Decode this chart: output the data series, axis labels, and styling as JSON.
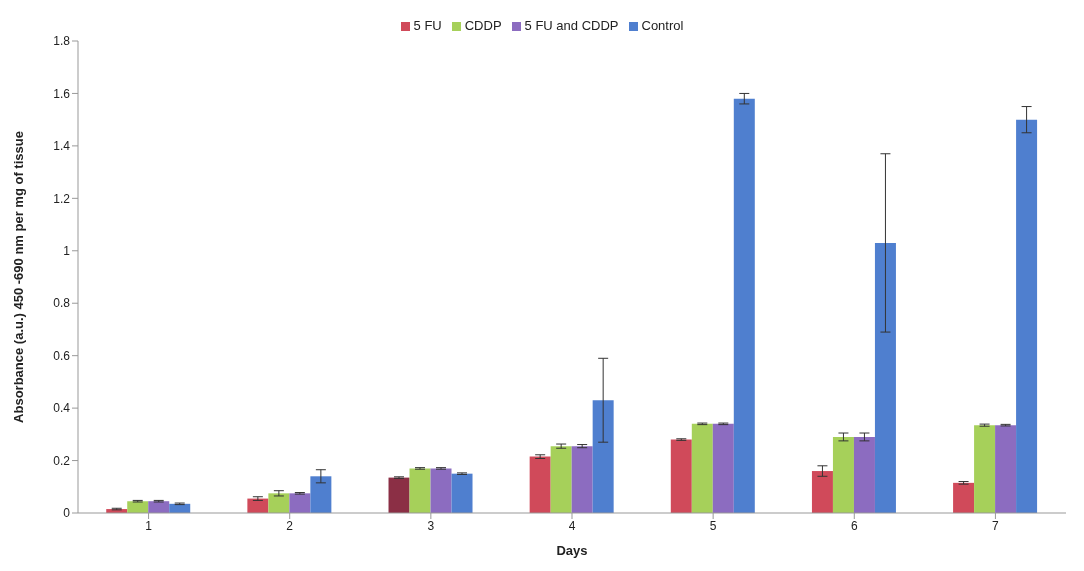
{
  "chart_data": {
    "type": "bar",
    "xlabel": "Days",
    "ylabel": "Absorbance (a.u.) 450 -690 nm per mg of tissue",
    "categories": [
      "1",
      "2",
      "3",
      "4",
      "5",
      "6",
      "7"
    ],
    "series": [
      {
        "name": "5 FU",
        "color": "#d04a5a",
        "colors": [
          "#d04a5a",
          "#d04a5a",
          "#8b2f45",
          "#d04a5a",
          "#d04a5a",
          "#d04a5a",
          "#d04a5a"
        ],
        "values": [
          0.015,
          0.055,
          0.135,
          0.215,
          0.28,
          0.16,
          0.115
        ],
        "errors": [
          0.003,
          0.007,
          0.003,
          0.007,
          0.003,
          0.02,
          0.005
        ]
      },
      {
        "name": "CDDP",
        "color": "#a6d05a",
        "values": [
          0.045,
          0.075,
          0.17,
          0.255,
          0.34,
          0.29,
          0.335
        ],
        "errors": [
          0.003,
          0.01,
          0.003,
          0.008,
          0.003,
          0.015,
          0.004
        ]
      },
      {
        "name": "5 FU and CDDP",
        "color": "#8c6cc0",
        "values": [
          0.045,
          0.075,
          0.17,
          0.255,
          0.34,
          0.29,
          0.335
        ],
        "errors": [
          0.003,
          0.003,
          0.003,
          0.006,
          0.003,
          0.015,
          0.003
        ]
      },
      {
        "name": "Control",
        "color": "#4f7fcf",
        "values": [
          0.035,
          0.14,
          0.15,
          0.43,
          1.58,
          1.03,
          1.5
        ],
        "errors": [
          0.003,
          0.025,
          0.003,
          0.16,
          0.02,
          0.34,
          0.05
        ]
      }
    ],
    "ylim": [
      0,
      1.8
    ],
    "yticks": [
      0,
      0.2,
      0.4,
      0.6,
      0.8,
      1,
      1.2,
      1.4,
      1.6,
      1.8
    ],
    "grid": false,
    "legend": "top"
  }
}
